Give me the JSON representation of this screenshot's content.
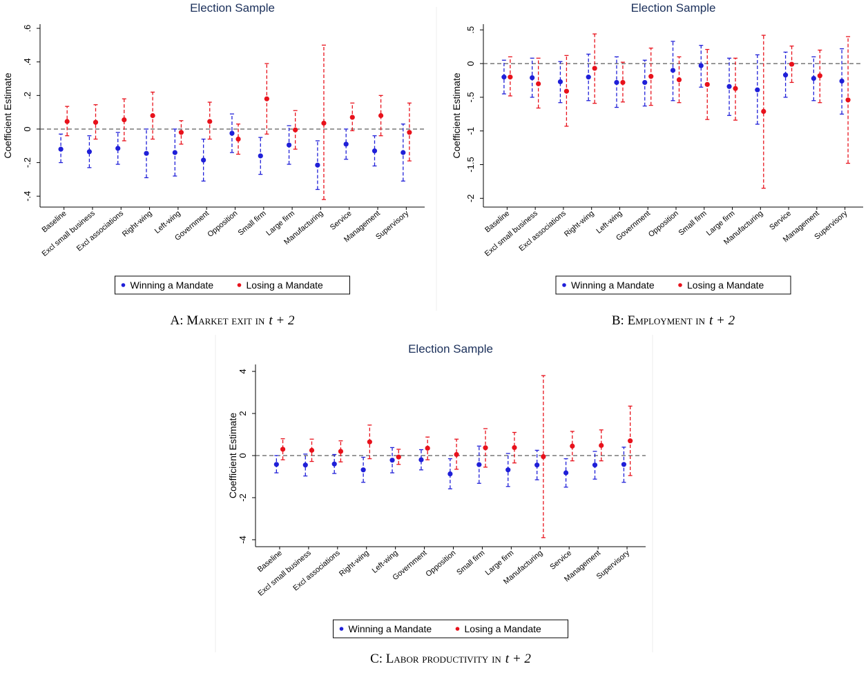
{
  "chart_data": [
    {
      "type": "errorbar",
      "title": "Election Sample",
      "y_label": "Coefficient Estimate",
      "caption": "A: Market exit in",
      "caption_math": "t + 2",
      "categories": [
        "Baseline",
        "Excl small business",
        "Excl associations",
        "Right-wing",
        "Left-wing",
        "Government",
        "Opposition",
        "Small firm",
        "Large firm",
        "Manufacturing",
        "Service",
        "Management",
        "Supervisory"
      ],
      "ylim": [
        -0.465,
        0.625
      ],
      "yticks": [
        {
          "value": -0.4,
          "label": "-.4"
        },
        {
          "value": -0.2,
          "label": "-.2"
        },
        0,
        {
          "value": 0.2,
          "label": ".2"
        },
        {
          "value": 0.4,
          "label": ".4"
        },
        {
          "value": 0.6,
          "label": ".6"
        }
      ],
      "series": [
        {
          "name": "Winning a Mandate",
          "color": "#1f1fd8",
          "values": [
            -0.12,
            -0.135,
            -0.115,
            -0.145,
            -0.14,
            -0.185,
            -0.025,
            -0.16,
            -0.095,
            -0.215,
            -0.09,
            -0.13,
            -0.14
          ],
          "lower": [
            -0.2,
            -0.23,
            -0.21,
            -0.29,
            -0.28,
            -0.31,
            -0.14,
            -0.27,
            -0.21,
            -0.36,
            -0.18,
            -0.22,
            -0.31
          ],
          "upper": [
            -0.03,
            -0.04,
            -0.02,
            0.0,
            0.0,
            -0.06,
            0.09,
            -0.05,
            0.02,
            -0.07,
            0.0,
            -0.04,
            0.03
          ]
        },
        {
          "name": "Losing a Mandate",
          "color": "#e8111b",
          "values": [
            0.045,
            0.04,
            0.055,
            0.08,
            -0.02,
            0.045,
            -0.06,
            0.18,
            -0.005,
            0.035,
            0.07,
            0.08,
            -0.02
          ],
          "lower": [
            -0.04,
            -0.06,
            -0.07,
            -0.06,
            -0.09,
            -0.06,
            -0.15,
            -0.03,
            -0.12,
            -0.42,
            -0.01,
            -0.04,
            -0.19
          ],
          "upper": [
            0.135,
            0.145,
            0.18,
            0.22,
            0.05,
            0.16,
            0.03,
            0.39,
            0.11,
            0.5,
            0.155,
            0.2,
            0.155
          ]
        }
      ]
    },
    {
      "type": "errorbar",
      "title": "Election Sample",
      "y_label": "Coefficient Estimate",
      "caption": "B: Employment in",
      "caption_math": "t + 2",
      "categories": [
        "Baseline",
        "Excl small business",
        "Excl associations",
        "Right-wing",
        "Left-wing",
        "Government",
        "Opposition",
        "Small firm",
        "Large firm",
        "Manufacturing",
        "Service",
        "Management",
        "Supervisory"
      ],
      "ylim": [
        -2.13,
        0.585
      ],
      "yticks": [
        -2,
        -1.5,
        -1,
        {
          "value": -0.5,
          "label": "-.5"
        },
        0,
        {
          "value": 0.5,
          "label": ".5"
        }
      ],
      "series": [
        {
          "name": "Winning a Mandate",
          "color": "#1f1fd8",
          "values": [
            -0.2,
            -0.21,
            -0.27,
            -0.2,
            -0.28,
            -0.28,
            -0.1,
            -0.03,
            -0.34,
            -0.39,
            -0.17,
            -0.22,
            -0.26
          ],
          "lower": [
            -0.45,
            -0.5,
            -0.58,
            -0.55,
            -0.65,
            -0.63,
            -0.55,
            -0.35,
            -0.77,
            -0.9,
            -0.5,
            -0.55,
            -0.75
          ],
          "upper": [
            0.05,
            0.08,
            0.03,
            0.14,
            0.1,
            0.05,
            0.33,
            0.27,
            0.08,
            0.13,
            0.17,
            0.1,
            0.22
          ]
        },
        {
          "name": "Losing a Mandate",
          "color": "#e8111b",
          "values": [
            -0.2,
            -0.3,
            -0.41,
            -0.07,
            -0.28,
            -0.19,
            -0.24,
            -0.31,
            -0.37,
            -0.71,
            -0.01,
            -0.18,
            -0.54
          ],
          "lower": [
            -0.48,
            -0.66,
            -0.93,
            -0.59,
            -0.57,
            -0.62,
            -0.58,
            -0.83,
            -0.84,
            -1.85,
            -0.28,
            -0.58,
            -1.48
          ],
          "upper": [
            0.1,
            0.08,
            0.12,
            0.44,
            0.02,
            0.23,
            0.1,
            0.21,
            0.08,
            0.42,
            0.26,
            0.2,
            0.4
          ]
        }
      ]
    },
    {
      "type": "errorbar",
      "title": "Election Sample",
      "y_label": "Coefficient Estimate",
      "caption": "C: Labor productivity in",
      "caption_math": "t + 2",
      "categories": [
        "Baseline",
        "Excl small business",
        "Excl associations",
        "Right-wing",
        "Left-wing",
        "Government",
        "Opposition",
        "Small firm",
        "Large firm",
        "Manufacturing",
        "Service",
        "Management",
        "Supervisory"
      ],
      "ylim": [
        -4.33,
        4.33
      ],
      "yticks": [
        -4,
        -2,
        0,
        2,
        4
      ],
      "series": [
        {
          "name": "Winning a Mandate",
          "color": "#1f1fd8",
          "values": [
            -0.42,
            -0.45,
            -0.4,
            -0.68,
            -0.22,
            -0.2,
            -0.87,
            -0.43,
            -0.68,
            -0.45,
            -0.82,
            -0.45,
            -0.42
          ],
          "lower": [
            -0.82,
            -0.97,
            -0.85,
            -1.27,
            -0.82,
            -0.68,
            -1.58,
            -1.32,
            -1.47,
            -1.15,
            -1.5,
            -1.12,
            -1.27
          ],
          "upper": [
            0.0,
            0.07,
            0.05,
            -0.08,
            0.38,
            0.28,
            -0.15,
            0.45,
            0.1,
            0.25,
            -0.15,
            0.2,
            0.4
          ]
        },
        {
          "name": "Losing a Mandate",
          "color": "#e8111b",
          "values": [
            0.3,
            0.25,
            0.2,
            0.65,
            -0.07,
            0.35,
            0.05,
            0.37,
            0.38,
            -0.05,
            0.45,
            0.48,
            0.7
          ],
          "lower": [
            -0.2,
            -0.28,
            -0.3,
            -0.15,
            -0.42,
            -0.2,
            -0.65,
            -0.55,
            -0.35,
            -3.9,
            -0.25,
            -0.25,
            -0.95
          ],
          "upper": [
            0.8,
            0.78,
            0.7,
            1.45,
            0.3,
            0.88,
            0.78,
            1.28,
            1.1,
            3.8,
            1.15,
            1.22,
            2.35
          ]
        }
      ]
    }
  ]
}
